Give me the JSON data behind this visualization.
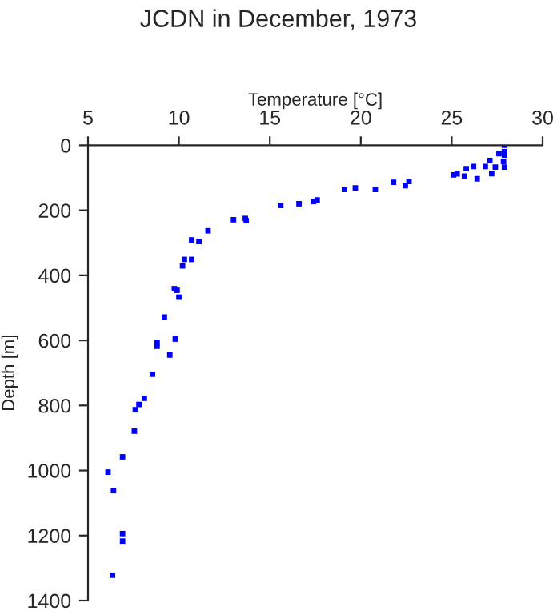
{
  "chart_data": {
    "type": "scatter",
    "title": "JCDN in December, 1973",
    "xlabel": "Temperature [°C]",
    "ylabel": "Depth [m]",
    "x": [
      27.9,
      27.9,
      27.9,
      27.6,
      27.85,
      27.1,
      26.85,
      26.2,
      27.4,
      27.9,
      25.8,
      27.2,
      25.3,
      25.1,
      25.7,
      26.4,
      22.65,
      22.45,
      21.8,
      20.8,
      19.7,
      19.1,
      17.6,
      17.4,
      16.6,
      15.6,
      13.65,
      13.7,
      13.0,
      11.6,
      10.7,
      11.1,
      10.3,
      10.7,
      10.2,
      9.75,
      9.9,
      10.0,
      9.2,
      9.8,
      8.8,
      8.8,
      9.5,
      8.55,
      8.1,
      7.8,
      7.6,
      7.55,
      6.9,
      6.1,
      6.4,
      6.9,
      6.9,
      6.35
    ],
    "series": [
      {
        "color": "#0000ff",
        "values": [
          0,
          20,
          30,
          26,
          50,
          47,
          65,
          65,
          67,
          67,
          72,
          87,
          88,
          91,
          95,
          103,
          111,
          124,
          114,
          136,
          131,
          136,
          168,
          173,
          180,
          185,
          225,
          232,
          229,
          263,
          291,
          296,
          351,
          351,
          371,
          441,
          446,
          467,
          528,
          596,
          606,
          618,
          645,
          704,
          778,
          797,
          813,
          879,
          958,
          1005,
          1062,
          1194,
          1217,
          1322
        ]
      }
    ],
    "xlim": [
      5,
      30
    ],
    "xticks": [
      5,
      10,
      15,
      20,
      25,
      30
    ],
    "ylim": [
      1400,
      0
    ],
    "yticks": [
      0,
      200,
      400,
      600,
      800,
      1000,
      1200,
      1400
    ],
    "grid": false,
    "legend": false,
    "marker": "square"
  }
}
